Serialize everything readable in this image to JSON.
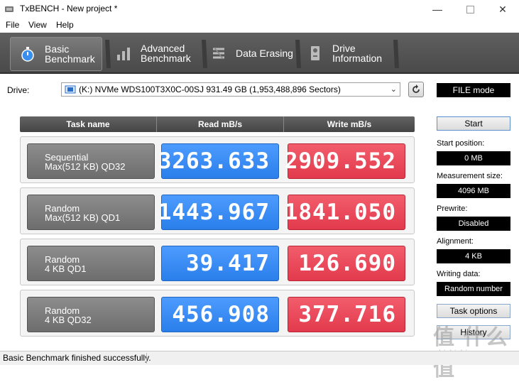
{
  "window": {
    "title": "TxBENCH - New project *"
  },
  "menu": [
    "File",
    "View",
    "Help"
  ],
  "tabs": [
    {
      "line1": "Basic",
      "line2": "Benchmark",
      "icon": "stopwatch-icon",
      "active": true
    },
    {
      "line1": "Advanced",
      "line2": "Benchmark",
      "icon": "bar-chart-icon",
      "active": false
    },
    {
      "line1": "Data Erasing",
      "line2": "",
      "icon": "eraser-icon",
      "active": false
    },
    {
      "line1": "Drive",
      "line2": "Information",
      "icon": "drive-info-icon",
      "active": false
    }
  ],
  "drive": {
    "label": "Drive:",
    "selected": "(K:) NVMe WDS100T3X0C-00SJ  931.49 GB (1,953,488,896 Sectors)",
    "mode": "FILE mode"
  },
  "table": {
    "headers": [
      "Task name",
      "Read mB/s",
      "Write mB/s"
    ],
    "rows": [
      {
        "name1": "Sequential",
        "name2": "Max(512 KB) QD32",
        "read": "3263.633",
        "write": "2909.552"
      },
      {
        "name1": "Random",
        "name2": "Max(512 KB) QD1",
        "read": "1443.967",
        "write": "1841.050"
      },
      {
        "name1": "Random",
        "name2": "4 KB QD1",
        "read": "39.417",
        "write": "126.690"
      },
      {
        "name1": "Random",
        "name2": "4 KB QD32",
        "read": "456.908",
        "write": "377.716"
      }
    ]
  },
  "side": {
    "start": "Start",
    "start_position_label": "Start position:",
    "start_position": "0 MB",
    "measurement_size_label": "Measurement size:",
    "measurement_size": "4096 MB",
    "prewrite_label": "Prewrite:",
    "prewrite": "Disabled",
    "alignment_label": "Alignment:",
    "alignment": "4 KB",
    "writing_data_label": "Writing data:",
    "writing_data": "Random number",
    "task_options": "Task options",
    "history": "History"
  },
  "status": "Basic Benchmark finished successfully.",
  "watermark": {
    "big": "值 什么值",
    "small": "zhizhizhi.com"
  },
  "colors": {
    "read": "#2a7fea",
    "write": "#e23a4c",
    "toolbar": "#4a4a4a"
  }
}
